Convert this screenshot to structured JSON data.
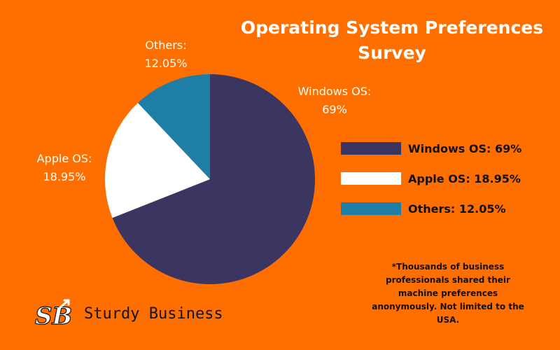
{
  "chart_data": {
    "type": "pie",
    "title_lines": [
      "Operating System Preferences",
      "Survey"
    ],
    "slices": [
      {
        "name": "Windows OS",
        "value": 69,
        "color": "#3b3561",
        "label_lines": [
          "Windows OS:",
          "69%"
        ],
        "legend": "Windows OS: 69%"
      },
      {
        "name": "Apple OS",
        "value": 18.95,
        "color": "#ffffff",
        "label_lines": [
          "Apple OS:",
          "18.95%"
        ],
        "legend": "Apple OS: 18.95%"
      },
      {
        "name": "Others",
        "value": 12.05,
        "color": "#1f7ea5",
        "label_lines": [
          "Others:",
          "12.05%"
        ],
        "legend": "Others: 12.05%"
      }
    ],
    "start_angle_deg": 0,
    "direction": "clockwise",
    "legend_position": "right"
  },
  "footnote": "*Thousands of business professionals shared their machine preferences anonymously. Not limited to the USA.",
  "brand": {
    "name": "Sturdy Business",
    "logo_text": "SB"
  },
  "background_color": "#ff6f00"
}
